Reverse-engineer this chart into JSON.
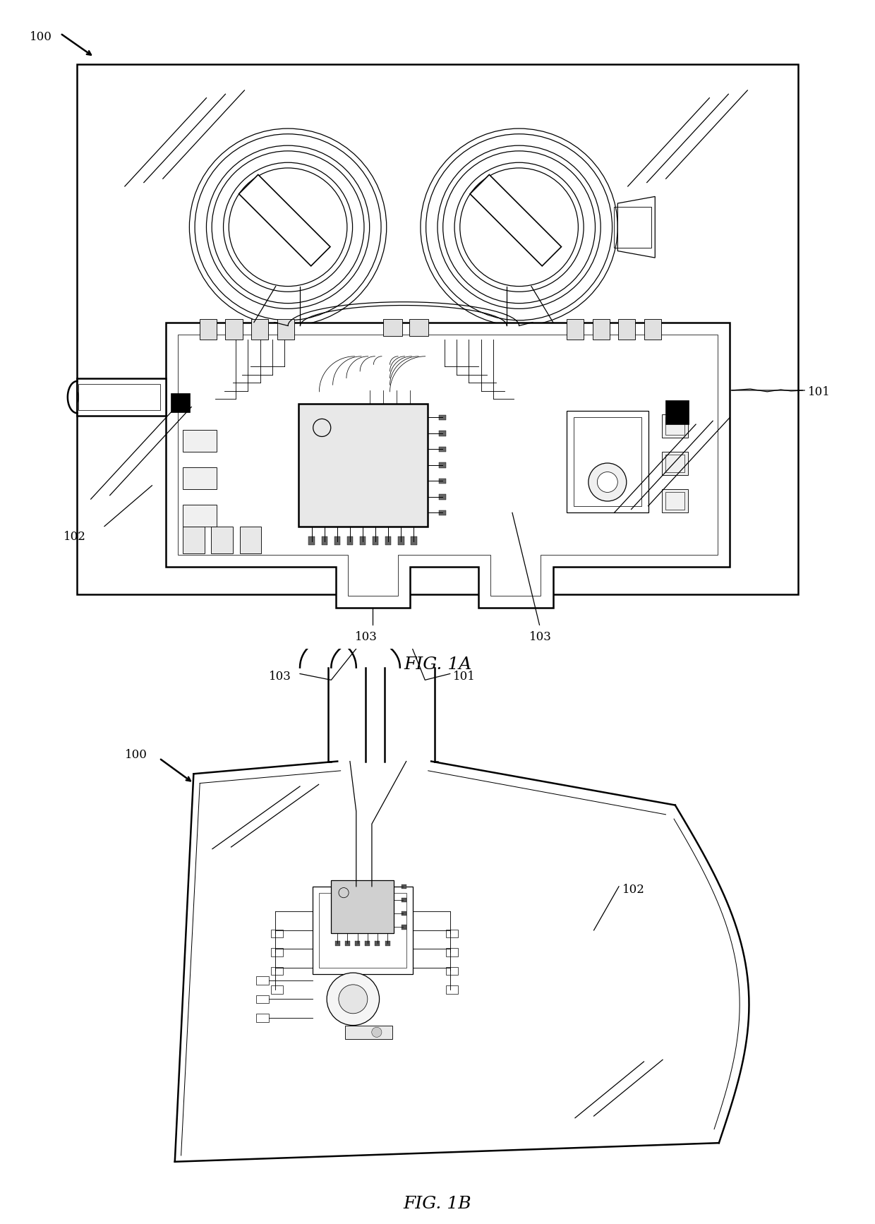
{
  "bg_color": "#ffffff",
  "line_color": "#000000",
  "fig_width": 12.4,
  "fig_height": 17.34,
  "fig1A_label": "FIG. 1A",
  "fig1B_label": "FIG. 1B",
  "label_100_1": "100",
  "label_101_1": "101",
  "label_102_1": "102",
  "label_103_1a": "103",
  "label_103_1b": "103",
  "label_100_2": "100",
  "label_101_2": "101",
  "label_102_2": "102",
  "label_103_2": "103",
  "font_size_label": 12,
  "font_size_fig": 18
}
